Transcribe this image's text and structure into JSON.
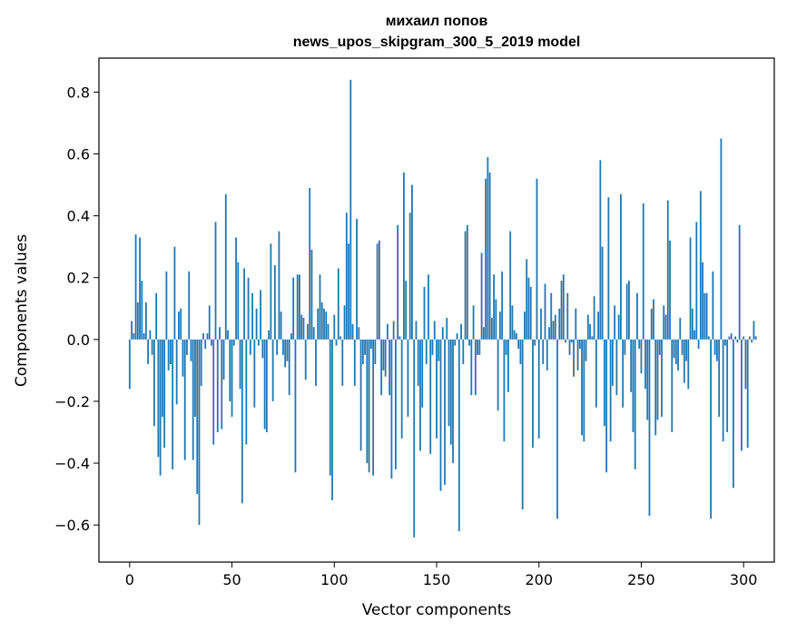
{
  "chart_data": {
    "type": "bar",
    "title_line1": "михаил попов",
    "title_line2": "news_upos_skipgram_300_5_2019 model",
    "xlabel": "Vector components",
    "ylabel": "Components values",
    "xlim": [
      -15,
      315
    ],
    "ylim": [
      -0.72,
      0.91
    ],
    "x_ticks": [
      0,
      50,
      100,
      150,
      200,
      250,
      300
    ],
    "x_tick_labels": [
      "0",
      "50",
      "100",
      "150",
      "200",
      "250",
      "300"
    ],
    "y_ticks": [
      -0.6,
      -0.4,
      -0.2,
      0.0,
      0.2,
      0.4,
      0.6,
      0.8
    ],
    "y_tick_labels": [
      "−0.6",
      "−0.4",
      "−0.2",
      "0.0",
      "0.2",
      "0.4",
      "0.6",
      "0.8"
    ],
    "bar_color": "#1f77b4",
    "values": [
      -0.16,
      0.06,
      0.02,
      0.34,
      0.12,
      0.33,
      0.19,
      0.02,
      0.12,
      -0.08,
      0.03,
      -0.05,
      -0.28,
      0.15,
      -0.38,
      -0.44,
      -0.25,
      -0.35,
      0.22,
      -0.1,
      -0.08,
      -0.42,
      0.3,
      -0.21,
      0.09,
      0.1,
      -0.12,
      -0.39,
      -0.05,
      0.22,
      -0.07,
      -0.39,
      -0.25,
      -0.5,
      -0.6,
      -0.15,
      0.02,
      -0.03,
      0.02,
      0.11,
      -0.02,
      -0.34,
      0.38,
      -0.3,
      0.04,
      -0.29,
      -0.13,
      0.47,
      0.03,
      -0.2,
      -0.25,
      -0.02,
      0.33,
      0.25,
      -0.16,
      -0.53,
      0.23,
      -0.34,
      0.2,
      -0.05,
      0.15,
      -0.22,
      0.1,
      -0.02,
      0.16,
      -0.06,
      -0.29,
      -0.3,
      0.03,
      0.31,
      -0.2,
      0.24,
      -0.05,
      0.35,
      0.09,
      -0.05,
      -0.09,
      -0.07,
      -0.18,
      0.02,
      0.2,
      -0.43,
      0.21,
      0.21,
      0.08,
      0.07,
      -0.13,
      0.05,
      0.49,
      0.29,
      0.04,
      -0.15,
      0.1,
      0.21,
      0.12,
      0.1,
      0.09,
      0.05,
      -0.44,
      -0.52,
      0.08,
      -0.02,
      0.23,
      0.01,
      -0.15,
      0.11,
      0.41,
      0.31,
      0.84,
      0.05,
      -0.15,
      0.39,
      0.04,
      -0.36,
      -0.08,
      -0.05,
      -0.4,
      -0.43,
      -0.03,
      -0.44,
      -0.08,
      0.31,
      0.32,
      -0.18,
      -0.1,
      -0.12,
      0.05,
      -0.18,
      -0.45,
      0.06,
      -0.42,
      0.37,
      0.01,
      -0.32,
      0.54,
      0.19,
      -0.25,
      0.41,
      0.5,
      -0.64,
      0.06,
      -0.15,
      -0.36,
      -0.22,
      0.17,
      -0.08,
      0.21,
      -0.37,
      -0.05,
      0.06,
      -0.32,
      -0.07,
      -0.49,
      0.04,
      -0.47,
      0.07,
      -0.28,
      -0.34,
      -0.4,
      -0.02,
      0.02,
      -0.62,
      0.05,
      -0.08,
      0.35,
      0.37,
      -0.02,
      -0.18,
      0.11,
      -0.18,
      -0.05,
      -0.05,
      0.28,
      0.04,
      0.52,
      0.59,
      0.54,
      0.07,
      0.21,
      0.13,
      -0.23,
      0.09,
      0.22,
      -0.33,
      -0.05,
      -0.17,
      0.35,
      0.11,
      0.03,
      0.02,
      -0.03,
      -0.08,
      -0.55,
      0.09,
      0.26,
      0.2,
      0.17,
      -0.35,
      -0.02,
      0.52,
      -0.32,
      0.1,
      -0.08,
      0.18,
      -0.1,
      0.04,
      0.15,
      0.06,
      0.08,
      -0.58,
      0.1,
      0.19,
      0.21,
      -0.01,
      0.15,
      -0.05,
      -0.01,
      -0.12,
      0.1,
      -0.1,
      -0.03,
      -0.31,
      -0.33,
      -0.07,
      0.08,
      0.05,
      0.01,
      0.14,
      -0.22,
      0.09,
      0.58,
      0.3,
      -0.28,
      -0.43,
      0.46,
      -0.33,
      -0.15,
      0.11,
      -0.18,
      0.08,
      0.47,
      -0.22,
      -0.05,
      0.18,
      0.19,
      -0.17,
      -0.3,
      -0.42,
      0.15,
      -0.03,
      -0.11,
      0.44,
      -0.16,
      -0.26,
      -0.57,
      0.1,
      0.13,
      -0.31,
      -0.26,
      -0.05,
      -0.25,
      0.11,
      0.08,
      0.45,
      0.32,
      -0.3,
      -0.06,
      -0.08,
      -0.1,
      0.07,
      -0.05,
      -0.14,
      -0.07,
      -0.16,
      0.33,
      0.1,
      0.03,
      0.38,
      -0.03,
      0.48,
      0.25,
      0.15,
      0.15,
      0.01,
      -0.58,
      0.22,
      -0.05,
      -0.07,
      -0.25,
      0.65,
      -0.33,
      -0.02,
      -0.3,
      0.01,
      0.02,
      -0.48,
      0.01,
      -0.01,
      0.37,
      -0.36,
      0.01,
      -0.16,
      -0.35,
      0.01,
      -0.01,
      0.06,
      0.01
    ]
  }
}
